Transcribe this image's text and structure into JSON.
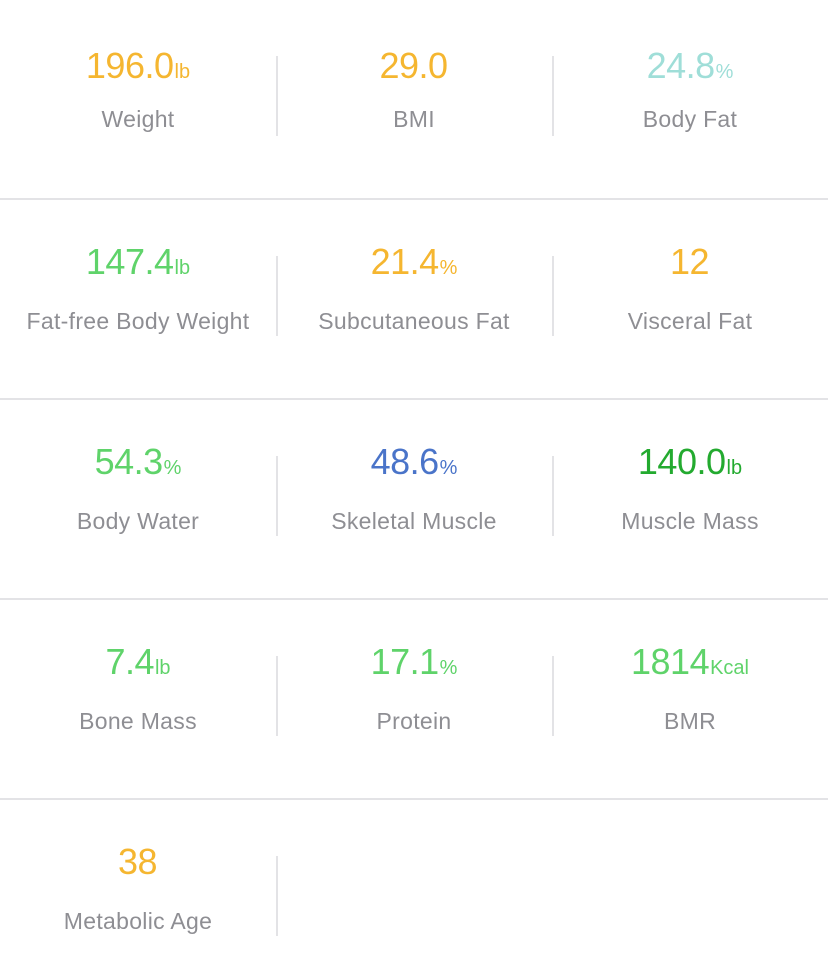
{
  "colors": {
    "orange": "#f5b630",
    "teal": "#9fded8",
    "green": "#5fd36a",
    "blue": "#4a74c9",
    "dark_green": "#23aa2f",
    "label_gray": "#8e8e93"
  },
  "metrics": [
    {
      "value": "196.0",
      "unit": "lb",
      "label": "Weight",
      "color": "#f5b630"
    },
    {
      "value": "29.0",
      "unit": "",
      "label": "BMI",
      "color": "#f5b630"
    },
    {
      "value": "24.8",
      "unit": "%",
      "label": "Body Fat",
      "color": "#9fded8"
    },
    {
      "value": "147.4",
      "unit": "lb",
      "label": "Fat-free Body Weight",
      "color": "#5fd36a"
    },
    {
      "value": "21.4",
      "unit": "%",
      "label": "Subcutaneous Fat",
      "color": "#f5b630"
    },
    {
      "value": "12",
      "unit": "",
      "label": "Visceral Fat",
      "color": "#f5b630"
    },
    {
      "value": "54.3",
      "unit": "%",
      "label": "Body Water",
      "color": "#5fd36a"
    },
    {
      "value": "48.6",
      "unit": "%",
      "label": "Skeletal Muscle",
      "color": "#4a74c9"
    },
    {
      "value": "140.0",
      "unit": "lb",
      "label": "Muscle Mass",
      "color": "#23aa2f"
    },
    {
      "value": "7.4",
      "unit": "lb",
      "label": "Bone Mass",
      "color": "#5fd36a"
    },
    {
      "value": "17.1",
      "unit": "%",
      "label": "Protein",
      "color": "#5fd36a"
    },
    {
      "value": "1814",
      "unit": "Kcal",
      "label": "BMR",
      "color": "#5fd36a"
    },
    {
      "value": "38",
      "unit": "",
      "label": "Metabolic Age",
      "color": "#f5b630"
    }
  ]
}
